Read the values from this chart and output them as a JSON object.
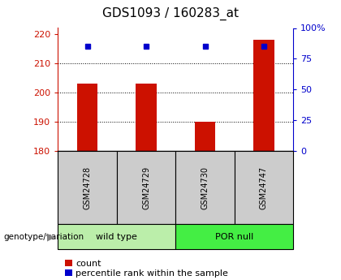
{
  "title": "GDS1093 / 160283_at",
  "samples": [
    "GSM24728",
    "GSM24729",
    "GSM24730",
    "GSM24747"
  ],
  "count_values": [
    203,
    203,
    190,
    218
  ],
  "percentile_values": [
    85,
    85,
    85,
    85
  ],
  "bar_bottom": 180,
  "left_ylim": [
    180,
    222
  ],
  "left_yticks": [
    180,
    190,
    200,
    210,
    220
  ],
  "right_ylim": [
    0,
    100
  ],
  "right_yticks": [
    0,
    25,
    50,
    75,
    100
  ],
  "bar_color": "#cc1100",
  "dot_color": "#0000cc",
  "grid_yticks": [
    190,
    200,
    210
  ],
  "groups": [
    {
      "label": "wild type",
      "samples": [
        "GSM24728",
        "GSM24729"
      ],
      "color": "#bbeeaa"
    },
    {
      "label": "POR null",
      "samples": [
        "GSM24730",
        "GSM24747"
      ],
      "color": "#44ee44"
    }
  ],
  "group_label_text": "genotype/variation",
  "legend_count_label": "count",
  "legend_percentile_label": "percentile rank within the sample",
  "left_axis_color": "#cc1100",
  "right_axis_color": "#0000cc",
  "bar_width": 0.35,
  "sample_box_color": "#cccccc",
  "title_fontsize": 11
}
